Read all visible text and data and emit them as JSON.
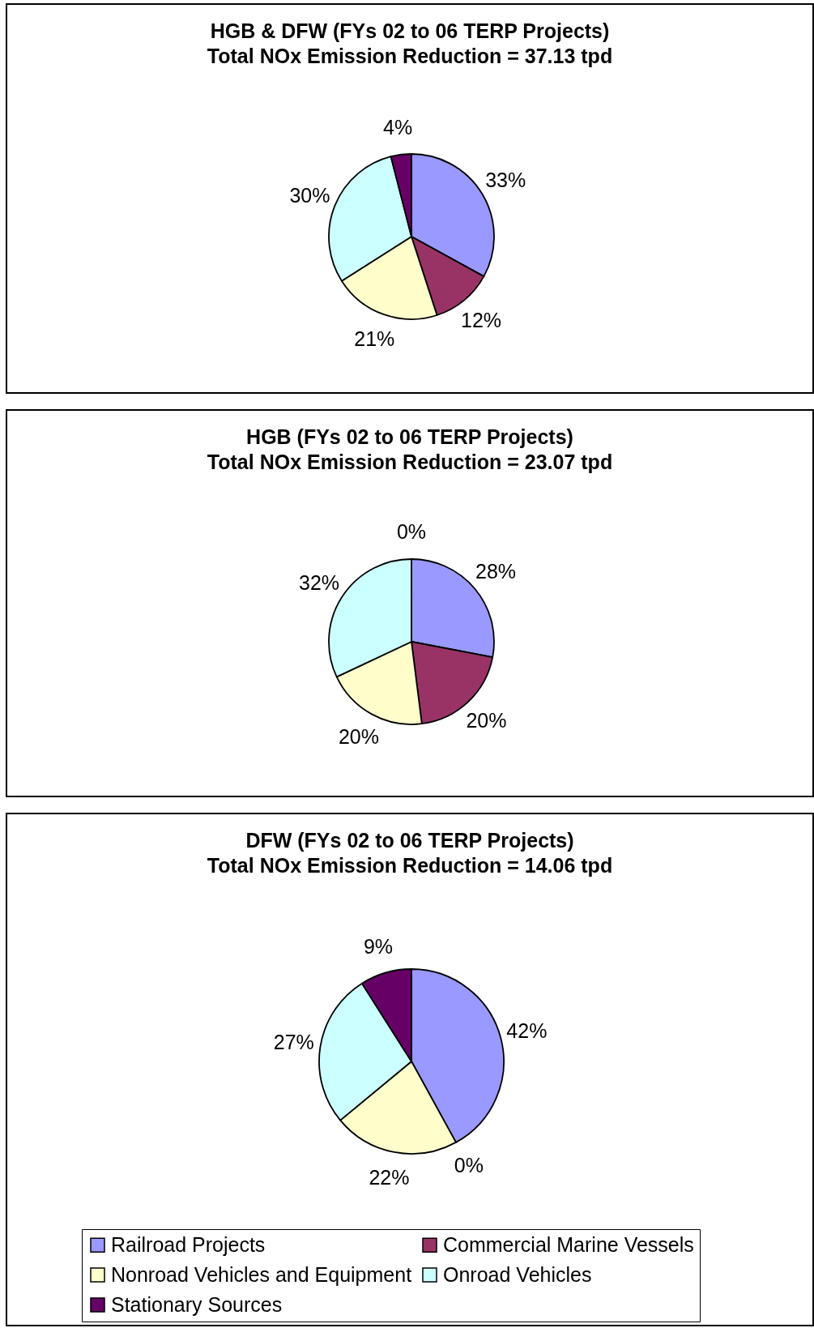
{
  "chart_data": [
    {
      "type": "pie",
      "title": "HGB & DFW (FYs 02 to 06 TERP Projects)",
      "subtitle": "Total NOx Emission Reduction = 37.13 tpd",
      "categories": [
        null,
        null,
        null,
        null,
        null
      ],
      "values": [
        33,
        12,
        21,
        30,
        4
      ],
      "value_labels": [
        "33%",
        "12%",
        "21%",
        "30%",
        "4%"
      ],
      "colors": [
        "#9999ff",
        "#993366",
        "#ffffcc",
        "#ccffff",
        "#660066"
      ]
    },
    {
      "type": "pie",
      "title": "HGB (FYs 02 to 06 TERP Projects)",
      "subtitle": "Total NOx Emission Reduction = 23.07 tpd",
      "categories": [
        null,
        null,
        null,
        null,
        null
      ],
      "values": [
        28,
        20,
        20,
        32,
        0
      ],
      "value_labels": [
        "28%",
        "20%",
        "20%",
        "32%",
        "0%"
      ],
      "colors": [
        "#9999ff",
        "#993366",
        "#ffffcc",
        "#ccffff",
        "#660066"
      ]
    },
    {
      "type": "pie",
      "title": "DFW (FYs 02 to 06 TERP Projects)",
      "subtitle": "Total NOx Emission Reduction = 14.06 tpd",
      "categories": [
        "Railroad Projects",
        "Commercial Marine Vessels",
        "Nonroad Vehicles and Equipment",
        "Onroad Vehicles",
        "Stationary Sources"
      ],
      "values": [
        42,
        0,
        22,
        27,
        9
      ],
      "value_labels": [
        "42%",
        "0%",
        "22%",
        "27%",
        "9%"
      ],
      "colors": [
        "#9999ff",
        "#993366",
        "#ffffcc",
        "#ccffff",
        "#660066"
      ],
      "legend": "bottom"
    }
  ]
}
